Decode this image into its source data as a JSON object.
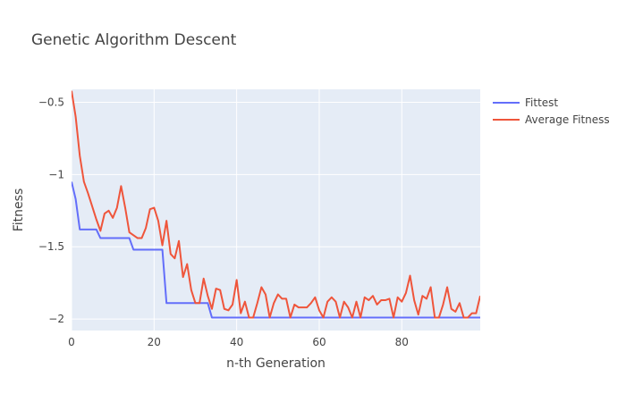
{
  "chart_data": {
    "type": "line",
    "title": "Genetic Algorithm Descent",
    "xlabel": "n-th Generation",
    "ylabel": "Fitness",
    "xlim": [
      0,
      99
    ],
    "ylim": [
      -2.08,
      -0.41
    ],
    "xticks": [
      0,
      20,
      40,
      60,
      80
    ],
    "yticks": [
      -0.5,
      -1,
      -1.5,
      -2
    ],
    "ytick_labels": [
      "−0.5",
      "−1",
      "−1.5",
      "−2"
    ],
    "grid": true,
    "legend_position": "top-right",
    "series": [
      {
        "name": "Fittest",
        "color": "#636efa",
        "x": [
          0,
          1,
          2,
          3,
          4,
          5,
          6,
          7,
          8,
          9,
          10,
          11,
          12,
          13,
          14,
          15,
          16,
          17,
          18,
          19,
          20,
          21,
          22,
          23,
          24,
          25,
          26,
          27,
          28,
          29,
          30,
          31,
          32,
          33,
          34,
          35,
          36,
          37,
          38,
          39,
          40,
          41,
          42,
          43,
          44,
          45,
          46,
          47,
          48,
          49,
          50,
          51,
          52,
          53,
          54,
          55,
          56,
          57,
          58,
          59,
          60,
          61,
          62,
          63,
          64,
          65,
          66,
          67,
          68,
          69,
          70,
          71,
          72,
          73,
          74,
          75,
          76,
          77,
          78,
          79,
          80,
          81,
          82,
          83,
          84,
          85,
          86,
          87,
          88,
          89,
          90,
          91,
          92,
          93,
          94,
          95,
          96,
          97,
          98,
          99
        ],
        "y": [
          -1.05,
          -1.17,
          -1.38,
          -1.38,
          -1.38,
          -1.38,
          -1.38,
          -1.44,
          -1.44,
          -1.44,
          -1.44,
          -1.44,
          -1.44,
          -1.44,
          -1.44,
          -1.52,
          -1.52,
          -1.52,
          -1.52,
          -1.52,
          -1.52,
          -1.52,
          -1.52,
          -1.89,
          -1.89,
          -1.89,
          -1.89,
          -1.89,
          -1.89,
          -1.89,
          -1.89,
          -1.89,
          -1.89,
          -1.89,
          -1.99,
          -1.99,
          -1.99,
          -1.99,
          -1.99,
          -1.99,
          -1.99,
          -1.99,
          -1.99,
          -1.99,
          -1.99,
          -1.99,
          -1.99,
          -1.99,
          -1.99,
          -1.99,
          -1.99,
          -1.99,
          -1.99,
          -1.99,
          -1.99,
          -1.99,
          -1.99,
          -1.99,
          -1.99,
          -1.99,
          -1.99,
          -1.99,
          -1.99,
          -1.99,
          -1.99,
          -1.99,
          -1.99,
          -1.99,
          -1.99,
          -1.99,
          -1.99,
          -1.99,
          -1.99,
          -1.99,
          -1.99,
          -1.99,
          -1.99,
          -1.99,
          -1.99,
          -1.99,
          -1.99,
          -1.99,
          -1.99,
          -1.99,
          -1.99,
          -1.99,
          -1.99,
          -1.99,
          -1.99,
          -1.99,
          -1.99,
          -1.99,
          -1.99,
          -1.99,
          -1.99,
          -1.99,
          -1.99,
          -1.99,
          -1.99,
          -1.99
        ]
      },
      {
        "name": "Average Fitness",
        "color": "#ef553b",
        "x": [
          0,
          1,
          2,
          3,
          4,
          5,
          6,
          7,
          8,
          9,
          10,
          11,
          12,
          13,
          14,
          15,
          16,
          17,
          18,
          19,
          20,
          21,
          22,
          23,
          24,
          25,
          26,
          27,
          28,
          29,
          30,
          31,
          32,
          33,
          34,
          35,
          36,
          37,
          38,
          39,
          40,
          41,
          42,
          43,
          44,
          45,
          46,
          47,
          48,
          49,
          50,
          51,
          52,
          53,
          54,
          55,
          56,
          57,
          58,
          59,
          60,
          61,
          62,
          63,
          64,
          65,
          66,
          67,
          68,
          69,
          70,
          71,
          72,
          73,
          74,
          75,
          76,
          77,
          78,
          79,
          80,
          81,
          82,
          83,
          84,
          85,
          86,
          87,
          88,
          89,
          90,
          91,
          92,
          93,
          94,
          95,
          96,
          97,
          98,
          99
        ],
        "y": [
          -0.42,
          -0.6,
          -0.87,
          -1.05,
          -1.13,
          -1.22,
          -1.31,
          -1.39,
          -1.27,
          -1.25,
          -1.3,
          -1.23,
          -1.08,
          -1.23,
          -1.4,
          -1.42,
          -1.44,
          -1.44,
          -1.37,
          -1.24,
          -1.23,
          -1.32,
          -1.49,
          -1.32,
          -1.55,
          -1.58,
          -1.46,
          -1.71,
          -1.62,
          -1.8,
          -1.89,
          -1.89,
          -1.72,
          -1.84,
          -1.93,
          -1.79,
          -1.8,
          -1.93,
          -1.94,
          -1.9,
          -1.73,
          -1.96,
          -1.88,
          -1.99,
          -1.99,
          -1.89,
          -1.78,
          -1.83,
          -1.99,
          -1.89,
          -1.83,
          -1.86,
          -1.86,
          -1.99,
          -1.9,
          -1.92,
          -1.92,
          -1.92,
          -1.89,
          -1.85,
          -1.94,
          -1.99,
          -1.88,
          -1.85,
          -1.88,
          -1.99,
          -1.88,
          -1.92,
          -1.99,
          -1.88,
          -1.99,
          -1.85,
          -1.87,
          -1.84,
          -1.9,
          -1.87,
          -1.87,
          -1.86,
          -1.99,
          -1.85,
          -1.88,
          -1.82,
          -1.7,
          -1.87,
          -1.97,
          -1.84,
          -1.86,
          -1.78,
          -1.99,
          -1.99,
          -1.9,
          -1.78,
          -1.93,
          -1.95,
          -1.89,
          -1.99,
          -1.99,
          -1.96,
          -1.96,
          -1.84
        ]
      }
    ]
  }
}
